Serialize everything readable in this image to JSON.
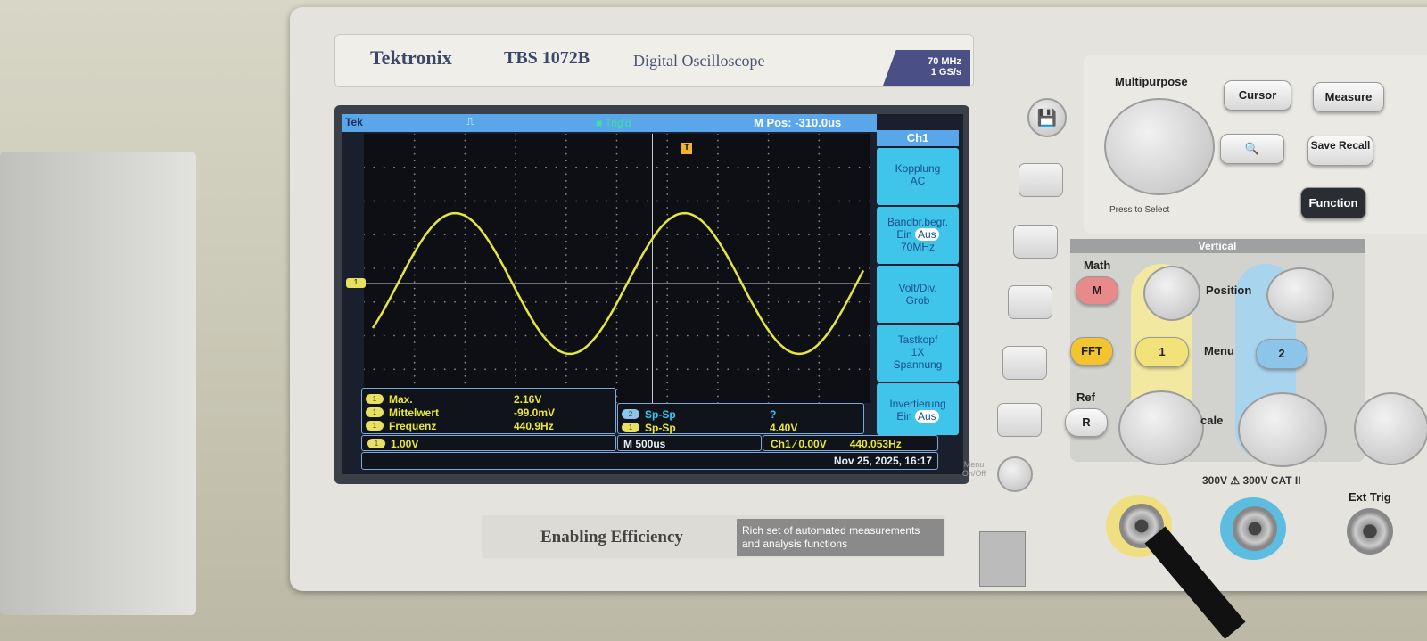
{
  "brand": {
    "name": "Tektronix",
    "model": "TBS 1072B",
    "description": "Digital Oscilloscope",
    "spec_bandwidth": "70 MHz",
    "spec_rate": "1 GS/s"
  },
  "screen": {
    "logo": "Tek",
    "trigger_status": "Trig'd",
    "mpos": "M Pos: -310.0us",
    "menu": {
      "title": "Ch1",
      "items": [
        {
          "label": "Kopplung",
          "value": "AC"
        },
        {
          "label": "Bandbr.begr.",
          "opt_a": "Ein",
          "opt_b": "Aus",
          "value": "70MHz"
        },
        {
          "label": "Volt/Div.",
          "value": "Grob"
        },
        {
          "label": "Tastkopf",
          "value": "1X",
          "value2": "Spannung"
        },
        {
          "label": "Invertierung",
          "opt_a": "Ein",
          "opt_b": "Aus"
        }
      ]
    },
    "measurements": [
      {
        "channel": "1",
        "name": "Max.",
        "value": "2.16V"
      },
      {
        "channel": "1",
        "name": "Mittelwert",
        "value": "-99.0mV"
      },
      {
        "channel": "1",
        "name": "Frequenz",
        "value": "440.9Hz"
      }
    ],
    "measurements2": [
      {
        "channel": "2",
        "name": "Sp-Sp",
        "value": "?"
      },
      {
        "channel": "1",
        "name": "Sp-Sp",
        "value": "4.40V"
      }
    ],
    "status": {
      "ch1_scale": "1.00V",
      "timebase": "M 500us",
      "trigger": "Ch1 ⁄ 0.00V",
      "trigger_freq": "440.053Hz",
      "datetime": "Nov 25, 2025, 16:17"
    },
    "ground_marker": "1",
    "trigger_marker": "T",
    "waveform": {
      "color": "#e4e83c",
      "shape": "sine",
      "frequency_hz": 440.9,
      "vpp_v": 4.4,
      "volts_per_div": 1.0,
      "time_per_div_us": 500
    }
  },
  "controls": {
    "multipurpose": "Multipurpose",
    "press_to_select": "Press to Select",
    "cursor": "Cursor",
    "measure": "Measure",
    "save_recall": "Save Recall",
    "function": "Function",
    "vertical": "Vertical",
    "math": "Math",
    "math_btn": "M",
    "fft": "FFT",
    "ref": "Ref",
    "ref_btn": "R",
    "position": "Position",
    "menu": "Menu",
    "ch1": "1",
    "ch2": "2",
    "scale": "cale",
    "rating": "300V ⚠ 300V CAT II",
    "ext_trig": "Ext Trig",
    "menu_onoff": "Menu On/Off"
  },
  "footer": {
    "slogan": "Enabling Efficiency",
    "tagline": "Rich set of automated measurements and analysis functions"
  }
}
